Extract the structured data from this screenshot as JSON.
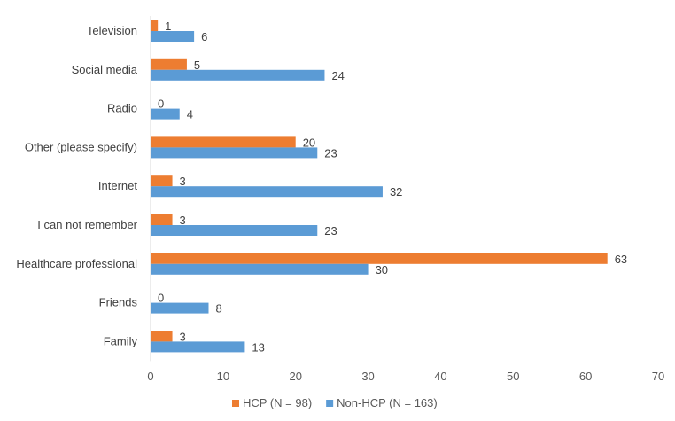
{
  "chart_data": {
    "type": "bar",
    "orientation": "horizontal",
    "title": "",
    "xlabel": "",
    "ylabel": "",
    "categories": [
      "Television",
      "Social media",
      "Radio",
      "Other (please specify)",
      "Internet",
      "I can not remember",
      "Healthcare professional",
      "Friends",
      "Family"
    ],
    "series": [
      {
        "name": "HCP (N = 98)",
        "color": "#ED7D31",
        "values": [
          1,
          5,
          0,
          20,
          3,
          3,
          63,
          0,
          3
        ]
      },
      {
        "name": "Non-HCP (N = 163)",
        "color": "#5B9BD5",
        "values": [
          6,
          24,
          4,
          23,
          32,
          23,
          30,
          8,
          13
        ]
      }
    ],
    "xlim": [
      0,
      70
    ],
    "xticks": [
      0,
      10,
      20,
      30,
      40,
      50,
      60,
      70
    ],
    "grid": false,
    "data_labels": true,
    "legend_position": "bottom"
  }
}
